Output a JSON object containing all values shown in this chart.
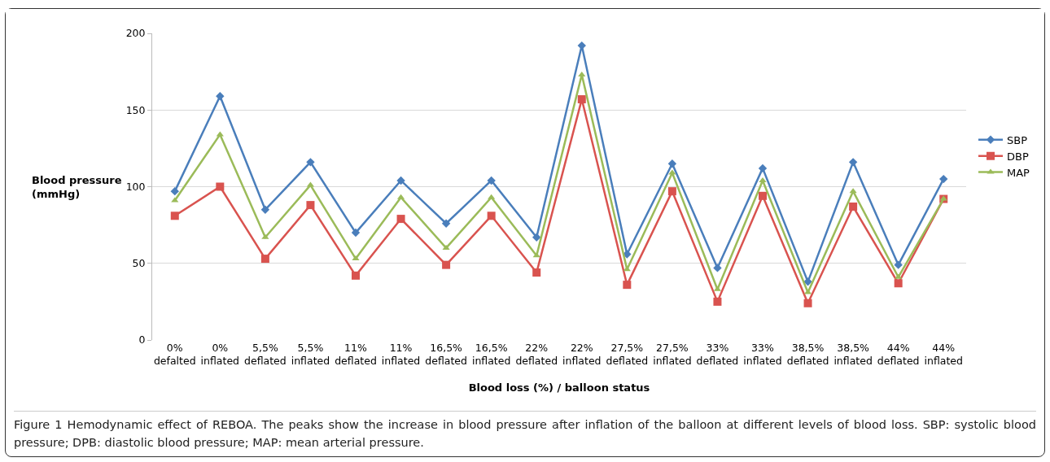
{
  "chart_data": {
    "type": "line",
    "xlabel": "Blood loss (%) / balloon status",
    "ylabel": "Blood pressure\n(mmHg)",
    "categories": [
      "0%\ndefalted",
      "0%\ninflated",
      "5,5%\ndeflated",
      "5,5%\ninflated",
      "11%\ndeflated",
      "11%\ninflated",
      "16,5%\ndeflated",
      "16,5%\ninflated",
      "22%\ndeflated",
      "22%\ninflated",
      "27,5%\ndeflated",
      "27,5%\ninflated",
      "33%\ndeflated",
      "33%\ninflated",
      "38,5%\ndeflated",
      "38,5%\ninflated",
      "44%\ndeflated",
      "44%\ninflated"
    ],
    "series": [
      {
        "name": "SBP",
        "color": "#4a7ebb",
        "marker": "diamond",
        "values": [
          97,
          159,
          85,
          116,
          70,
          104,
          76,
          104,
          67,
          192,
          56,
          115,
          47,
          112,
          38,
          116,
          49,
          105
        ]
      },
      {
        "name": "DBP",
        "color": "#d9534f",
        "marker": "square",
        "values": [
          81,
          100,
          53,
          88,
          42,
          79,
          49,
          81,
          44,
          157,
          36,
          97,
          25,
          94,
          24,
          87,
          37,
          92
        ]
      },
      {
        "name": "MAP",
        "color": "#9bbb59",
        "marker": "triangle",
        "values": [
          91,
          134,
          67,
          101,
          53,
          93,
          60,
          93,
          55,
          173,
          46,
          109,
          33,
          104,
          31,
          97,
          41,
          92
        ]
      }
    ],
    "ylim": [
      0,
      200
    ],
    "yticks": [
      0,
      50,
      100,
      150,
      200
    ],
    "grid": "y",
    "legend": "right",
    "line_style": "solid",
    "annotations": [
      "Figure 1 Hemodynamic effect of REBOA. The peaks show the increase in blood pressure after inflation of the balloon at different levels of blood loss. SBP: systolic blood pressure; DPB: diastolic blood pressure; MAP: mean arterial pressure."
    ]
  }
}
